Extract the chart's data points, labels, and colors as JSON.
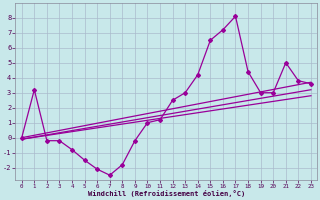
{
  "xlabel": "Windchill (Refroidissement éolien,°C)",
  "background_color": "#c8e8ea",
  "grid_color": "#aabbcc",
  "line_color": "#990099",
  "x_data": [
    0,
    1,
    2,
    3,
    4,
    5,
    6,
    7,
    8,
    9,
    10,
    11,
    12,
    13,
    14,
    15,
    16,
    17,
    18,
    19,
    20,
    21,
    22,
    23
  ],
  "y_main": [
    0.0,
    3.2,
    -0.2,
    -0.2,
    -0.8,
    -1.5,
    -2.1,
    -2.5,
    -1.8,
    -0.2,
    1.0,
    1.2,
    2.5,
    3.0,
    4.2,
    6.5,
    7.2,
    8.1,
    4.4,
    3.0,
    3.0,
    5.0,
    3.8,
    3.6
  ],
  "line1_x": [
    0,
    23
  ],
  "line1_y": [
    -0.1,
    2.8
  ],
  "line2_x": [
    0,
    23
  ],
  "line2_y": [
    -0.1,
    3.2
  ],
  "line3_x": [
    0,
    23
  ],
  "line3_y": [
    0.0,
    3.7
  ],
  "ylim": [
    -2.8,
    9.0
  ],
  "xlim": [
    -0.5,
    23.5
  ],
  "yticks": [
    -2,
    -1,
    0,
    1,
    2,
    3,
    4,
    5,
    6,
    7,
    8
  ],
  "xticks": [
    0,
    1,
    2,
    3,
    4,
    5,
    6,
    7,
    8,
    9,
    10,
    11,
    12,
    13,
    14,
    15,
    16,
    17,
    18,
    19,
    20,
    21,
    22,
    23
  ]
}
